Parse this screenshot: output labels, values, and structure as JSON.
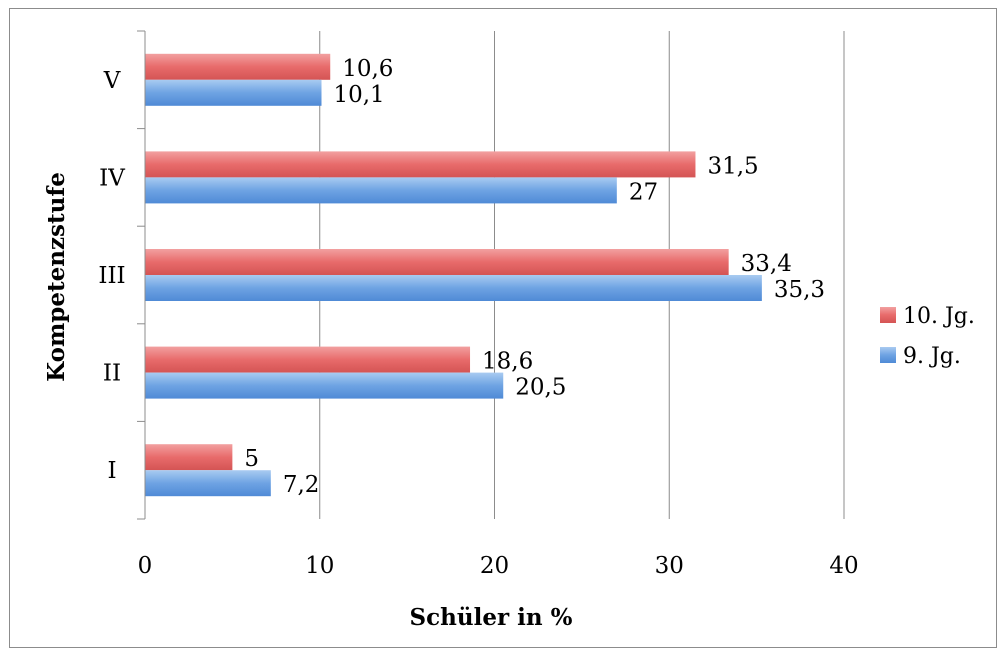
{
  "chart_data": {
    "type": "bar",
    "orientation": "horizontal",
    "categories": [
      "I",
      "II",
      "III",
      "IV",
      "V"
    ],
    "series": [
      {
        "name": "10. Jg.",
        "values": [
          5,
          18.6,
          33.4,
          31.5,
          10.6
        ],
        "labels": [
          "5",
          "18,6",
          "33,4",
          "31,5",
          "10,6"
        ],
        "color": "#e06666"
      },
      {
        "name": "9. Jg.",
        "values": [
          7.2,
          20.5,
          35.3,
          27,
          10.1
        ],
        "labels": [
          "7,2",
          "20,5",
          "35,3",
          "27",
          "10,1"
        ],
        "color": "#5b9bd5"
      }
    ],
    "xlabel": "Schüler in %",
    "ylabel": "Kompetenzstufe",
    "xlim": [
      0,
      40
    ],
    "xticks": [
      "0",
      "10",
      "20",
      "30",
      "40"
    ],
    "grid": true,
    "legend_position": "right"
  }
}
